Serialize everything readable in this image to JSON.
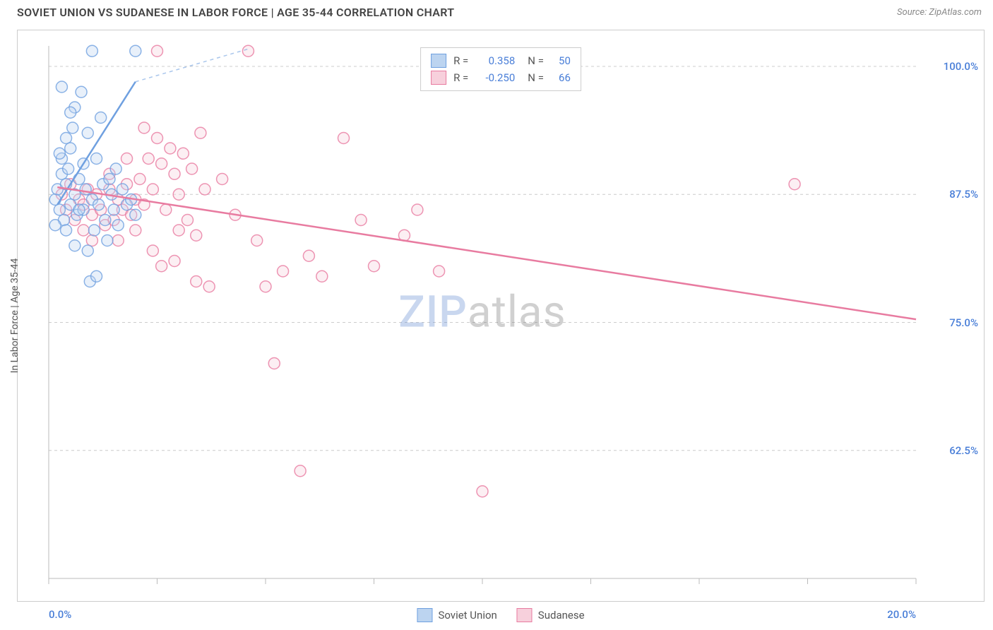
{
  "header": {
    "title": "SOVIET UNION VS SUDANESE IN LABOR FORCE | AGE 35-44 CORRELATION CHART",
    "source": "Source: ZipAtlas.com"
  },
  "chart": {
    "type": "scatter",
    "ylabel": "In Labor Force | Age 35-44",
    "xlim": [
      0,
      20
    ],
    "ylim": [
      50,
      102
    ],
    "xtick_positions": [
      0,
      2.5,
      5,
      7.5,
      10,
      12.5,
      15,
      17.5,
      20
    ],
    "xtick_labels_shown": {
      "0": "0.0%",
      "20": "20.0%"
    },
    "ytick_positions": [
      62.5,
      75.0,
      87.5,
      100.0
    ],
    "ytick_labels": [
      "62.5%",
      "75.0%",
      "87.5%",
      "100.0%"
    ],
    "grid_color": "#cccccc",
    "grid_dash": "4,4",
    "axis_color": "#bbbbbb",
    "background_color": "#ffffff",
    "label_color": "#4a7fd8",
    "marker_radius": 8,
    "marker_opacity": 0.35,
    "marker_stroke_width": 1.5,
    "watermark": {
      "bold": "ZIP",
      "rest": "atlas"
    },
    "series": [
      {
        "name": "Soviet Union",
        "fill": "#bcd4f0",
        "stroke": "#6fa0e0",
        "R": "0.358",
        "N": "50",
        "trend": {
          "x1": 0.2,
          "y1": 86.5,
          "x2": 2.0,
          "y2": 98.5,
          "dash_ext_x": 4.6,
          "dash_ext_y": 101.7
        },
        "points": [
          [
            0.15,
            87.0
          ],
          [
            0.2,
            88.0
          ],
          [
            0.25,
            86.0
          ],
          [
            0.3,
            89.5
          ],
          [
            0.3,
            91.0
          ],
          [
            0.35,
            85.0
          ],
          [
            0.4,
            93.0
          ],
          [
            0.4,
            88.5
          ],
          [
            0.45,
            90.0
          ],
          [
            0.5,
            86.5
          ],
          [
            0.5,
            92.0
          ],
          [
            0.55,
            94.0
          ],
          [
            0.6,
            87.5
          ],
          [
            0.6,
            96.0
          ],
          [
            0.65,
            85.5
          ],
          [
            0.7,
            89.0
          ],
          [
            0.75,
            97.5
          ],
          [
            0.8,
            86.0
          ],
          [
            0.8,
            90.5
          ],
          [
            0.85,
            88.0
          ],
          [
            0.9,
            93.5
          ],
          [
            0.9,
            82.0
          ],
          [
            0.95,
            79.0
          ],
          [
            1.0,
            87.0
          ],
          [
            1.0,
            101.5
          ],
          [
            1.05,
            84.0
          ],
          [
            1.1,
            91.0
          ],
          [
            1.15,
            86.5
          ],
          [
            1.2,
            95.0
          ],
          [
            1.25,
            88.5
          ],
          [
            1.3,
            85.0
          ],
          [
            1.35,
            83.0
          ],
          [
            1.4,
            89.0
          ],
          [
            1.45,
            87.5
          ],
          [
            1.5,
            86.0
          ],
          [
            1.55,
            90.0
          ],
          [
            1.6,
            84.5
          ],
          [
            1.7,
            88.0
          ],
          [
            1.8,
            86.5
          ],
          [
            1.9,
            87.0
          ],
          [
            2.0,
            85.5
          ],
          [
            2.0,
            101.5
          ],
          [
            0.3,
            98.0
          ],
          [
            0.5,
            95.5
          ],
          [
            0.4,
            84.0
          ],
          [
            0.6,
            82.5
          ],
          [
            0.25,
            91.5
          ],
          [
            1.1,
            79.5
          ],
          [
            0.7,
            86.0
          ],
          [
            0.15,
            84.5
          ]
        ]
      },
      {
        "name": "Sudanese",
        "fill": "#f7d0dc",
        "stroke": "#e87ba0",
        "R": "-0.250",
        "N": "66",
        "trend": {
          "x1": 0.2,
          "y1": 88.2,
          "x2": 20.0,
          "y2": 75.3
        },
        "points": [
          [
            0.3,
            87.5
          ],
          [
            0.4,
            86.0
          ],
          [
            0.5,
            88.5
          ],
          [
            0.6,
            85.0
          ],
          [
            0.7,
            87.0
          ],
          [
            0.8,
            86.5
          ],
          [
            0.9,
            88.0
          ],
          [
            1.0,
            85.5
          ],
          [
            1.1,
            87.5
          ],
          [
            1.2,
            86.0
          ],
          [
            1.3,
            84.5
          ],
          [
            1.4,
            88.0
          ],
          [
            1.5,
            85.0
          ],
          [
            1.6,
            87.0
          ],
          [
            1.7,
            86.0
          ],
          [
            1.8,
            88.5
          ],
          [
            1.9,
            85.5
          ],
          [
            2.0,
            87.0
          ],
          [
            2.1,
            89.0
          ],
          [
            2.2,
            86.5
          ],
          [
            2.3,
            91.0
          ],
          [
            2.4,
            88.0
          ],
          [
            2.5,
            93.0
          ],
          [
            2.6,
            90.5
          ],
          [
            2.7,
            86.0
          ],
          [
            2.8,
            92.0
          ],
          [
            2.9,
            89.5
          ],
          [
            3.0,
            87.5
          ],
          [
            3.1,
            91.5
          ],
          [
            3.2,
            85.0
          ],
          [
            3.3,
            90.0
          ],
          [
            3.4,
            83.5
          ],
          [
            3.5,
            93.5
          ],
          [
            3.6,
            88.0
          ],
          [
            2.2,
            94.0
          ],
          [
            2.6,
            80.5
          ],
          [
            3.0,
            84.0
          ],
          [
            3.4,
            79.0
          ],
          [
            2.5,
            101.5
          ],
          [
            4.0,
            89.0
          ],
          [
            4.3,
            85.5
          ],
          [
            4.6,
            101.5
          ],
          [
            4.8,
            83.0
          ],
          [
            5.0,
            78.5
          ],
          [
            5.4,
            80.0
          ],
          [
            5.2,
            71.0
          ],
          [
            6.0,
            81.5
          ],
          [
            6.3,
            79.5
          ],
          [
            6.8,
            93.0
          ],
          [
            7.2,
            85.0
          ],
          [
            7.5,
            80.5
          ],
          [
            8.2,
            83.5
          ],
          [
            8.5,
            86.0
          ],
          [
            9.0,
            80.0
          ],
          [
            2.9,
            81.0
          ],
          [
            3.7,
            78.5
          ],
          [
            1.4,
            89.5
          ],
          [
            1.8,
            91.0
          ],
          [
            2.0,
            84.0
          ],
          [
            5.8,
            60.5
          ],
          [
            10.0,
            58.5
          ],
          [
            17.2,
            88.5
          ],
          [
            1.0,
            83.0
          ],
          [
            0.8,
            84.0
          ],
          [
            1.6,
            83.0
          ],
          [
            2.4,
            82.0
          ]
        ]
      }
    ],
    "legend_bottom": [
      {
        "label": "Soviet Union",
        "fill": "#bcd4f0",
        "stroke": "#6fa0e0"
      },
      {
        "label": "Sudanese",
        "fill": "#f7d0dc",
        "stroke": "#e87ba0"
      }
    ]
  }
}
